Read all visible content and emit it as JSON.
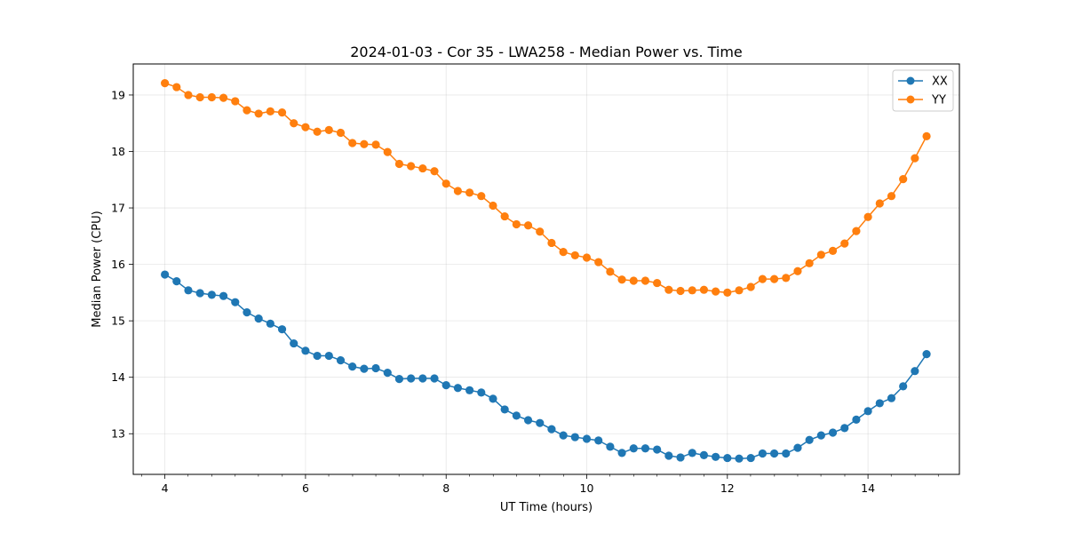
{
  "chart_data": {
    "type": "line",
    "title": "2024-01-03 - Cor 35 - LWA258 - Median Power vs. Time",
    "xlabel": "UT Time (hours)",
    "ylabel": "Median Power (CPU)",
    "xlim": [
      3.55,
      15.3
    ],
    "ylim": [
      12.28,
      19.55
    ],
    "xticks": [
      4,
      6,
      8,
      10,
      12,
      14
    ],
    "xtick_labels": [
      "4",
      "6",
      "8",
      "10",
      "12",
      "14"
    ],
    "yticks": [
      13,
      14,
      15,
      16,
      17,
      18,
      19
    ],
    "ytick_labels": [
      "13",
      "14",
      "15",
      "16",
      "17",
      "18",
      "19"
    ],
    "minor_xticks": [
      3.67,
      4.33,
      4.67,
      5,
      5.33,
      5.67,
      6.33,
      6.67,
      7,
      7.33,
      7.67,
      8.33,
      8.67,
      9,
      9.33,
      9.67,
      10.33,
      10.67,
      11,
      11.33,
      11.67,
      12.33,
      12.67,
      13,
      13.33,
      13.67,
      14.33,
      14.67,
      15,
      15.33
    ],
    "grid": true,
    "legend_position": "top-right",
    "x": [
      4.0,
      4.1667,
      4.3333,
      4.5,
      4.6667,
      4.8333,
      5.0,
      5.1667,
      5.3333,
      5.5,
      5.6667,
      5.8333,
      6.0,
      6.1667,
      6.3333,
      6.5,
      6.6667,
      6.8333,
      7.0,
      7.1667,
      7.3333,
      7.5,
      7.6667,
      7.8333,
      8.0,
      8.1667,
      8.3333,
      8.5,
      8.6667,
      8.8333,
      9.0,
      9.1667,
      9.3333,
      9.5,
      9.6667,
      9.8333,
      10.0,
      10.1667,
      10.3333,
      10.5,
      10.6667,
      10.8333,
      11.0,
      11.1667,
      11.3333,
      11.5,
      11.6667,
      11.8333,
      12.0,
      12.1667,
      12.3333,
      12.5,
      12.6667,
      12.8333,
      13.0,
      13.1667,
      13.3333,
      13.5,
      13.6667,
      13.8333,
      14.0,
      14.1667,
      14.3333,
      14.5,
      14.6667,
      14.8333
    ],
    "series": [
      {
        "name": "XX",
        "color": "#1f77b4",
        "values": [
          15.82,
          15.7,
          15.54,
          15.49,
          15.46,
          15.44,
          15.33,
          15.15,
          15.04,
          14.95,
          14.85,
          14.6,
          14.47,
          14.38,
          14.38,
          14.3,
          14.19,
          14.15,
          14.16,
          14.08,
          13.97,
          13.98,
          13.98,
          13.98,
          13.86,
          13.81,
          13.77,
          13.73,
          13.62,
          13.43,
          13.32,
          13.24,
          13.19,
          13.08,
          12.97,
          12.94,
          12.91,
          12.88,
          12.77,
          12.66,
          12.74,
          12.74,
          12.72,
          12.61,
          12.58,
          12.66,
          12.62,
          12.59,
          12.57,
          12.56,
          12.57,
          12.65,
          12.65,
          12.65,
          12.75,
          12.89,
          12.97,
          13.02,
          13.1,
          13.25,
          13.4,
          13.54,
          13.63,
          13.84,
          14.11,
          14.41
        ]
      },
      {
        "name": "YY",
        "color": "#ff7f0e",
        "values": [
          19.21,
          19.14,
          19.0,
          18.96,
          18.96,
          18.95,
          18.89,
          18.73,
          18.67,
          18.71,
          18.69,
          18.5,
          18.43,
          18.35,
          18.38,
          18.33,
          18.15,
          18.13,
          18.12,
          17.99,
          17.78,
          17.74,
          17.7,
          17.65,
          17.43,
          17.3,
          17.27,
          17.21,
          17.04,
          16.85,
          16.71,
          16.69,
          16.58,
          16.38,
          16.22,
          16.16,
          16.12,
          16.04,
          15.87,
          15.73,
          15.71,
          15.71,
          15.67,
          15.55,
          15.53,
          15.54,
          15.55,
          15.52,
          15.5,
          15.54,
          15.6,
          15.74,
          15.74,
          15.76,
          15.88,
          16.02,
          16.17,
          16.24,
          16.37,
          16.59,
          16.84,
          17.08,
          17.21,
          17.51,
          17.88,
          18.27
        ]
      }
    ]
  }
}
